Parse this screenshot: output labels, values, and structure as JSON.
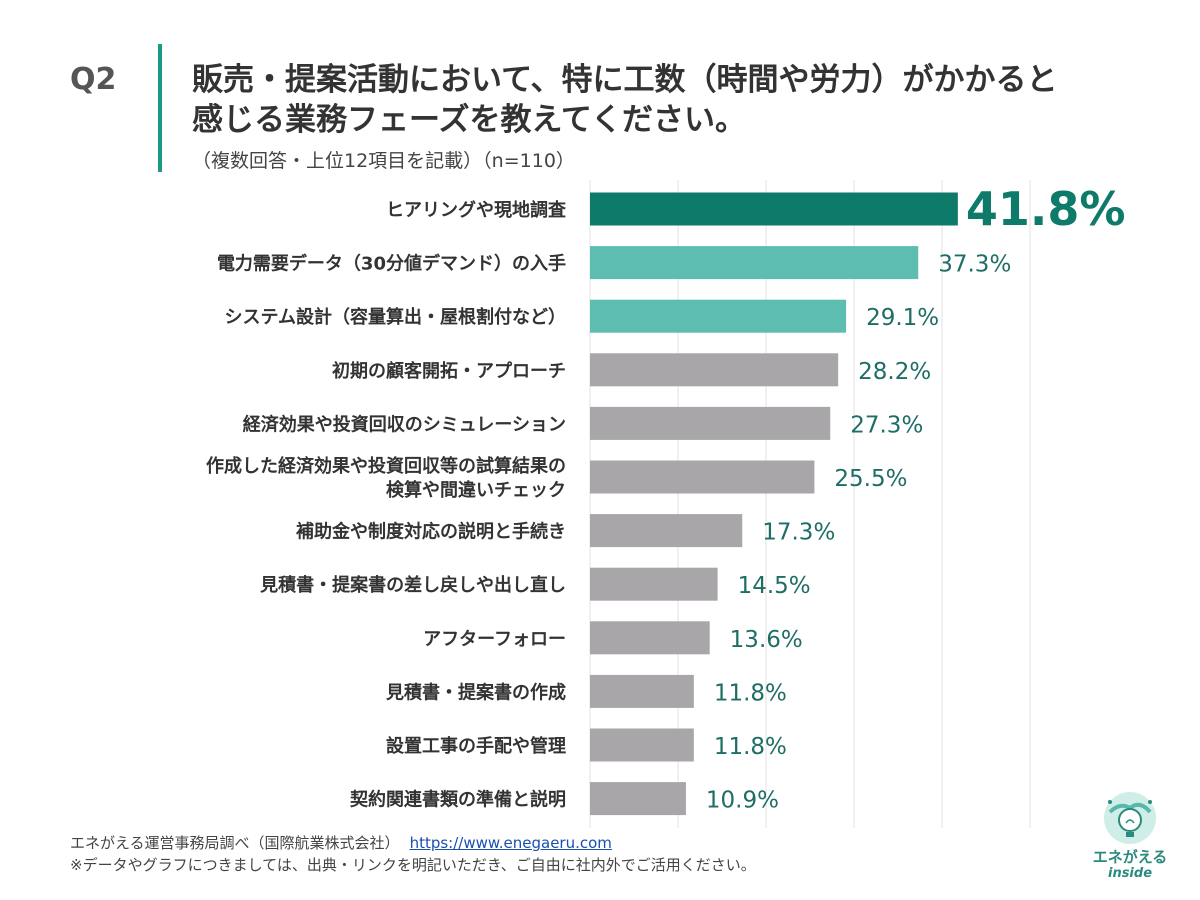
{
  "header": {
    "q_label": "Q2",
    "question_line1": "販売・提案活動において、特に工数（時間や労力）がかかると",
    "question_line2": "感じる業務フェーズを教えてください。",
    "note": "（複数回答・上位12項目を記載）（n=110）"
  },
  "chart_data": {
    "type": "bar",
    "orientation": "horizontal",
    "title": "",
    "xlabel": "",
    "ylabel": "",
    "xlim": [
      0,
      50
    ],
    "grid": true,
    "legend": "none",
    "categories": [
      [
        "ヒアリングや現地調査"
      ],
      [
        "電力需要データ（30分値デマンド）の入手"
      ],
      [
        "システム設計（容量算出・屋根割付など）"
      ],
      [
        "初期の顧客開拓・アプローチ"
      ],
      [
        "経済効果や投資回収のシミュレーション"
      ],
      [
        "作成した経済効果や投資回収等の試算結果の",
        "検算や間違いチェック"
      ],
      [
        "補助金や制度対応の説明と手続き"
      ],
      [
        "見積書・提案書の差し戻しや出し直し"
      ],
      [
        "アフターフォロー"
      ],
      [
        "見積書・提案書の作成"
      ],
      [
        "設置工事の手配や管理"
      ],
      [
        "契約関連書類の準備と説明"
      ]
    ],
    "values": [
      41.8,
      37.3,
      29.1,
      28.2,
      27.3,
      25.5,
      17.3,
      14.5,
      13.6,
      11.8,
      11.8,
      10.9
    ],
    "value_labels": [
      "41.8%",
      "37.3%",
      "29.1%",
      "28.2%",
      "27.3%",
      "25.5%",
      "17.3%",
      "14.5%",
      "13.6%",
      "11.8%",
      "11.8%",
      "10.9%"
    ],
    "colors": {
      "top": "#0e7a6a",
      "highlight": "#5cbdb0",
      "default": "#a8a6a8",
      "value_text": "#1f6e66",
      "gridline": "#e2e2e2"
    },
    "bar_color_roles": [
      "top",
      "highlight",
      "highlight",
      "default",
      "default",
      "default",
      "default",
      "default",
      "default",
      "default",
      "default",
      "default"
    ]
  },
  "footer": {
    "source": "エネがえる運営事務局調べ（国際航業株式会社）",
    "url": "https://www.enegaeru.com",
    "disclaimer": "※データやグラフにつきましては、出典・リンクを明記いただき、ご自由に社内外でご活用ください。"
  },
  "logo": {
    "name": "エネがえる",
    "sub": "inside",
    "icon": "lightbulb-globe-icon"
  }
}
